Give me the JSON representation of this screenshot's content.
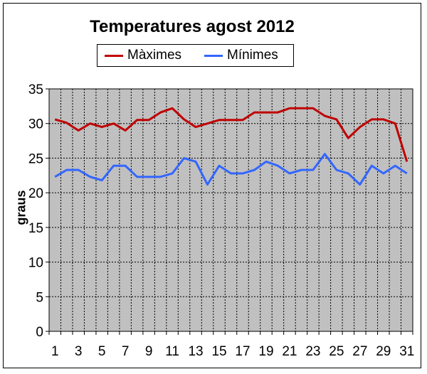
{
  "chart_data": {
    "type": "line",
    "title": "Temperatures agost 2012",
    "ylabel": "graus",
    "xlabel": "",
    "ylim": [
      0,
      35
    ],
    "yticks": [
      0,
      5,
      10,
      15,
      20,
      25,
      30,
      35
    ],
    "x": [
      1,
      2,
      3,
      4,
      5,
      6,
      7,
      8,
      9,
      10,
      11,
      12,
      13,
      14,
      15,
      16,
      17,
      18,
      19,
      20,
      21,
      22,
      23,
      24,
      25,
      26,
      27,
      28,
      29,
      30,
      31
    ],
    "xtick_labels": [
      "1",
      "3",
      "5",
      "7",
      "9",
      "11",
      "13",
      "15",
      "17",
      "19",
      "21",
      "23",
      "25",
      "27",
      "29",
      "31"
    ],
    "grid": true,
    "legend_position": "top",
    "plot_background": "#c0c0c0",
    "series": [
      {
        "name": "Màximes",
        "color": "#c00000",
        "values": [
          30.6,
          30.1,
          29.0,
          30.0,
          29.5,
          30.0,
          29.0,
          30.5,
          30.5,
          31.6,
          32.2,
          30.6,
          29.5,
          30.0,
          30.5,
          30.5,
          30.5,
          31.6,
          31.6,
          31.6,
          32.2,
          32.2,
          32.2,
          31.1,
          30.6,
          27.9,
          29.5,
          30.6,
          30.6,
          30.0,
          24.5
        ]
      },
      {
        "name": "Mínimes",
        "color": "#3366ff",
        "values": [
          22.3,
          23.3,
          23.3,
          22.3,
          21.8,
          23.9,
          23.9,
          22.3,
          22.3,
          22.3,
          22.8,
          25.0,
          24.5,
          21.2,
          23.9,
          22.8,
          22.8,
          23.3,
          24.5,
          23.9,
          22.8,
          23.3,
          23.3,
          25.6,
          23.3,
          22.8,
          21.2,
          23.9,
          22.8,
          23.9,
          22.8
        ]
      }
    ]
  }
}
